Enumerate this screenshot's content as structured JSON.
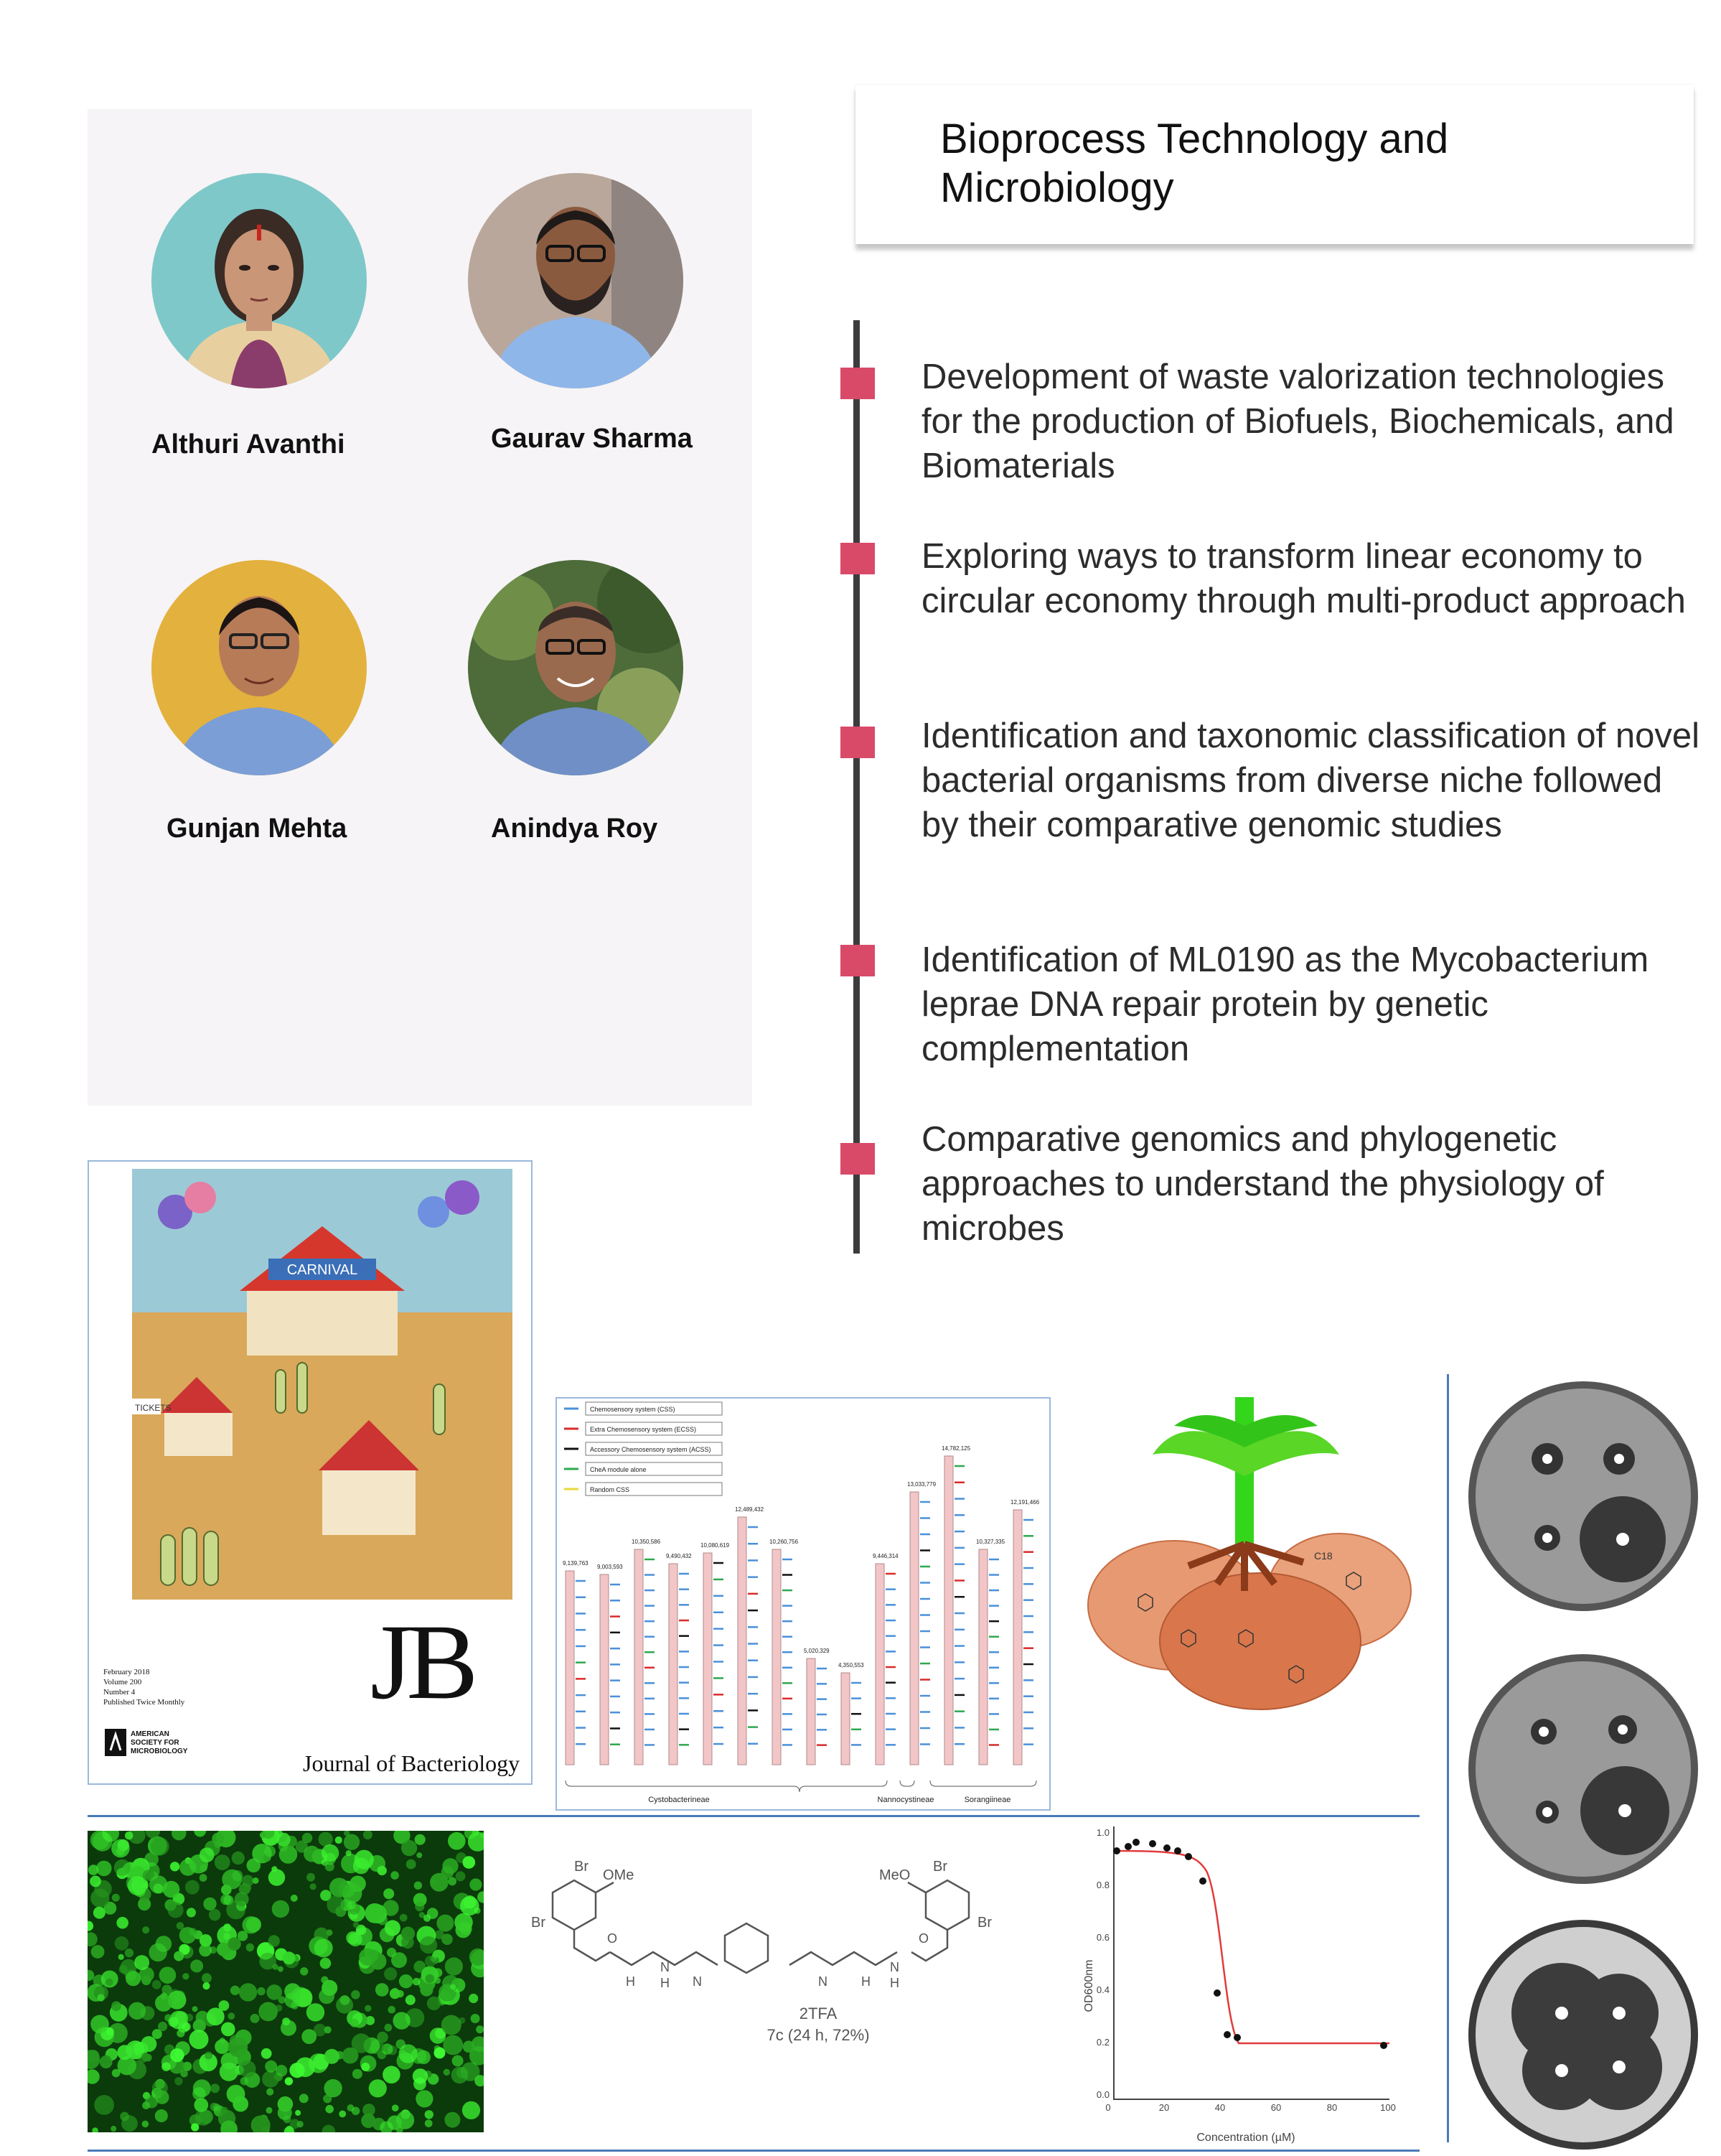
{
  "header": {
    "title": "Bioprocess Technology and Microbiology"
  },
  "people": [
    {
      "name": "Althuri Avanthi",
      "photo_icon": "person-photo-icon"
    },
    {
      "name": "Gaurav Sharma",
      "photo_icon": "person-photo-icon"
    },
    {
      "name": "Gunjan Mehta",
      "photo_icon": "person-photo-icon"
    },
    {
      "name": "Anindya Roy",
      "photo_icon": "person-photo-icon"
    }
  ],
  "research_areas": [
    "Development of waste valorization technologies for the production of Biofuels, Biochemicals, and Biomaterials",
    "Exploring ways to transform linear economy to circular economy through multi-product approach",
    "Identification and taxonomic classification of novel bacterial organisms from diverse niche followed by their comparative genomic studies",
    "Identification of ML0190 as the Mycobacterium leprae DNA repair protein by genetic complementation",
    "Comparative genomics and phylogenetic approaches to understand the physiology of microbes"
  ],
  "colors": {
    "marker": "#d94a69",
    "timeline": "#3e3b3e",
    "panel": "#f6f4f6",
    "rule": "#4a7ab8"
  },
  "journal_cover": {
    "banner": "CARNIVAL",
    "tickets": "TICKETS",
    "date_lines": [
      "February 2018",
      "Volume 200",
      "Number 4",
      "Published Twice Monthly"
    ],
    "society": [
      "AMERICAN",
      "SOCIETY FOR",
      "MICROBIOLOGY"
    ],
    "logo": "JB",
    "journal": "Journal of Bacteriology"
  },
  "genome_chart": {
    "legend": [
      {
        "label": "Chemosensory system (CSS)",
        "color": "#4a90d9"
      },
      {
        "label": "Extra Chemosensory system (ECSS)",
        "color": "#d92b2b"
      },
      {
        "label": "Accessory Chemosensory system (ACSS)",
        "color": "#111111"
      },
      {
        "label": "CheA module alone",
        "color": "#2fa84f"
      },
      {
        "label": "Random CSS",
        "color": "#e8d93a"
      }
    ],
    "sizes": [
      "9,139,763",
      "9,003,593",
      "10,350,586",
      "9,490,432",
      "10,080,619",
      "12,489,432",
      "10,260,756",
      "5,020,329",
      "4,350,553",
      "9,446,314",
      "13,033,779",
      "14,782,125",
      "10,327,335",
      "12,191,466"
    ],
    "groups": [
      "Cystobacterineae",
      "Nannocystineae",
      "Sorangiineae"
    ]
  },
  "root_diagram": {
    "label": "C18"
  },
  "molecule": {
    "labels": [
      "Br",
      "OMe",
      "Br",
      "MeO",
      "Br",
      "Br",
      "H",
      "N",
      "H",
      "N",
      "O",
      "O",
      "N",
      "H",
      "N",
      "H"
    ],
    "salt": "2TFA",
    "compound": "7c  (24 h, 72%)"
  },
  "dose_curve": {
    "ylabel": "OD600nm",
    "xlabel": "Concentration (µM)",
    "yticks": [
      "1.0",
      "0.8",
      "0.6",
      "0.4",
      "0.2",
      "0.0"
    ],
    "xticks": [
      "0",
      "20",
      "40",
      "60",
      "80",
      "100"
    ]
  }
}
